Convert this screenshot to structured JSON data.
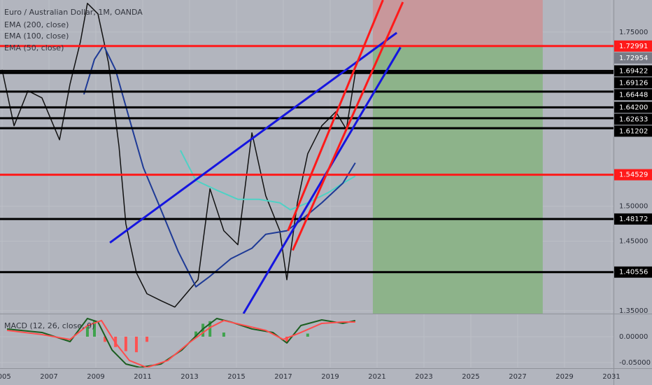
{
  "chart_data": {
    "type": "line",
    "title": "Euro / Australian Dollar, 1M, OANDA",
    "xlim": [
      2004.91,
      2031.09
    ],
    "xticks": [
      2005,
      2007,
      2009,
      2011,
      2013,
      2015,
      2017,
      2019,
      2021,
      2023,
      2025,
      2027,
      2029,
      2031
    ],
    "ylim": [
      1.346,
      1.796
    ],
    "yticks": [
      {
        "value": 1.75,
        "label": "1.75000"
      },
      {
        "value": 1.5,
        "label": "1.50000"
      },
      {
        "value": 1.45,
        "label": "1.45000"
      },
      {
        "value": 1.35,
        "label": "1.35000"
      }
    ],
    "grid": true,
    "series": [
      {
        "color": "#111111",
        "x": [
          2005.0,
          2005.51,
          2006.1,
          2006.7,
          2007.45,
          2007.9,
          2008.34,
          2008.64,
          2009.09,
          2009.54,
          2009.99,
          2010.28,
          2010.73,
          2011.18,
          2011.78,
          2012.37,
          2013.36,
          2013.87,
          2014.46,
          2015.06,
          2015.66,
          2016.25,
          2016.85,
          2017.15,
          2017.6,
          2018.04,
          2018.64,
          2019.24,
          2019.69,
          2020.07
        ],
        "values": [
          1.6958,
          1.6155,
          1.6657,
          1.6556,
          1.5954,
          1.6757,
          1.7359,
          1.7912,
          1.7761,
          1.7058,
          1.5853,
          1.4749,
          1.4046,
          1.3745,
          1.3645,
          1.3554,
          1.3946,
          1.5251,
          1.4649,
          1.4448,
          1.6054,
          1.5151,
          1.4649,
          1.3946,
          1.505,
          1.5753,
          1.6155,
          1.6356,
          1.6104,
          1.6908
        ]
      },
      {
        "name": "EMA (200, close)",
        "color": "#4fd1c5",
        "x": [
          2012.61,
          2013.27,
          2014.16,
          2015.06,
          2015.96,
          2016.85,
          2017.3,
          2018.04,
          2018.94,
          2019.54,
          2020.07
        ],
        "values": [
          1.5803,
          1.5371,
          1.5231,
          1.51,
          1.51,
          1.505,
          1.495,
          1.505,
          1.5201,
          1.5331,
          1.5432
        ]
      },
      {
        "name": "EMA (100, close)",
        "color": "#1e3a96",
        "x": [
          2008.49,
          2008.94,
          2009.33,
          2009.84,
          2010.43,
          2011.03,
          2011.78,
          2012.52,
          2013.27,
          2013.87,
          2014.76,
          2015.66,
          2016.25,
          2017.15,
          2017.75,
          2018.64,
          2019.54,
          2020.07
        ],
        "values": [
          1.6606,
          1.7108,
          1.7309,
          1.6958,
          1.6255,
          1.5552,
          1.495,
          1.4347,
          1.3845,
          1.3996,
          1.4247,
          1.4398,
          1.4598,
          1.4649,
          1.4799,
          1.505,
          1.5331,
          1.5623
        ]
      },
      {
        "name": "EMA (50, close)",
        "color": "#e53935",
        "x": [],
        "values": []
      }
    ],
    "current_price": {
      "value": 1.72954,
      "label": "1.72954",
      "color": "#787b86"
    },
    "levels": [
      {
        "value": 1.72991,
        "label": "1.72991",
        "color": "#ff1a1a"
      },
      {
        "value": 1.69422,
        "label": "1.69422",
        "color": "#000000"
      },
      {
        "value": 1.69126,
        "label": "1.69126",
        "color": "#000000"
      },
      {
        "value": 1.66448,
        "label": "1.66448",
        "color": "#000000"
      },
      {
        "value": 1.642,
        "label": "1.64200",
        "color": "#000000"
      },
      {
        "value": 1.62633,
        "label": "1.62633",
        "color": "#000000"
      },
      {
        "value": 1.61202,
        "label": "1.61202",
        "color": "#000000"
      },
      {
        "value": 1.54529,
        "label": "1.54529",
        "color": "#ff1a1a"
      },
      {
        "value": 1.48172,
        "label": "1.48172",
        "color": "#000000"
      },
      {
        "value": 1.40556,
        "label": "1.40556",
        "color": "#000000"
      }
    ],
    "trendlines": [
      {
        "color": "#1515e0",
        "x": [
          2009.6,
          2021.84
        ],
        "values": [
          1.4478,
          1.749
        ]
      },
      {
        "color": "#1515e0",
        "x": [
          2015.3,
          2022.0
        ],
        "values": [
          1.346,
          1.728
        ]
      },
      {
        "color": "#ff1a1a",
        "x": [
          2017.4,
          2022.1
        ],
        "values": [
          1.4368,
          1.793
        ]
      },
      {
        "color": "#ff1a1a",
        "x": [
          2017.2,
          2021.25
        ],
        "values": [
          1.4649,
          1.796
        ]
      }
    ],
    "position": {
      "x": [
        2020.82,
        2028.07
      ],
      "entry": 1.72991,
      "stop": 1.796,
      "target": 1.346,
      "stop_color": "#c8979b",
      "target_color": "#8db38a"
    },
    "macd_pane": {
      "title": "MACD (12, 26, close, 9)",
      "ylim": [
        -0.0595,
        0.0432
      ],
      "yticks": [
        {
          "value": 0,
          "label": "0.00000"
        },
        {
          "value": -0.05,
          "label": "-0.05000"
        }
      ],
      "macd": {
        "color": "#1b5e20",
        "x": [
          2005.21,
          2006.7,
          2007.9,
          2008.64,
          2009.09,
          2009.69,
          2010.28,
          2010.88,
          2011.78,
          2012.67,
          2013.57,
          2014.16,
          2014.76,
          2015.66,
          2016.55,
          2017.15,
          2017.75,
          2018.64,
          2019.54,
          2020.07
        ],
        "values": [
          0.0149,
          0.0081,
          -0.0095,
          0.0351,
          0.0284,
          -0.0257,
          -0.0527,
          -0.0595,
          -0.0527,
          -0.0257,
          0.0149,
          0.0351,
          0.0284,
          0.0149,
          0.0081,
          -0.0122,
          0.0216,
          0.0324,
          0.0257,
          0.0311
        ]
      },
      "signal": {
        "color": "#ff4d4d",
        "x": [
          2005.21,
          2006.7,
          2007.9,
          2008.64,
          2009.24,
          2009.84,
          2010.43,
          2011.18,
          2012.07,
          2012.97,
          2013.87,
          2014.46,
          2015.36,
          2016.25,
          2017.0,
          2017.75,
          2018.64,
          2019.54,
          2020.07
        ],
        "values": [
          0.0122,
          0.0041,
          -0.0054,
          0.0216,
          0.0311,
          -0.0122,
          -0.0459,
          -0.0595,
          -0.0459,
          -0.0122,
          0.0176,
          0.0311,
          0.0216,
          0.0122,
          -0.0054,
          0.0081,
          0.0257,
          0.0284,
          0.0284
        ]
      },
      "histogram": {
        "up_color": "#3fa34d",
        "down_color": "#ff5252",
        "x": [
          2008.64,
          2008.94,
          2009.39,
          2009.84,
          2010.28,
          2010.73,
          2011.18,
          2013.27,
          2013.57,
          2013.87,
          2014.46,
          2017.15,
          2018.04
        ],
        "values": [
          0.02,
          0.03,
          -0.01,
          -0.02,
          -0.028,
          -0.03,
          -0.01,
          0.01,
          0.025,
          0.03,
          0.008,
          -0.012,
          0.006
        ]
      }
    }
  }
}
